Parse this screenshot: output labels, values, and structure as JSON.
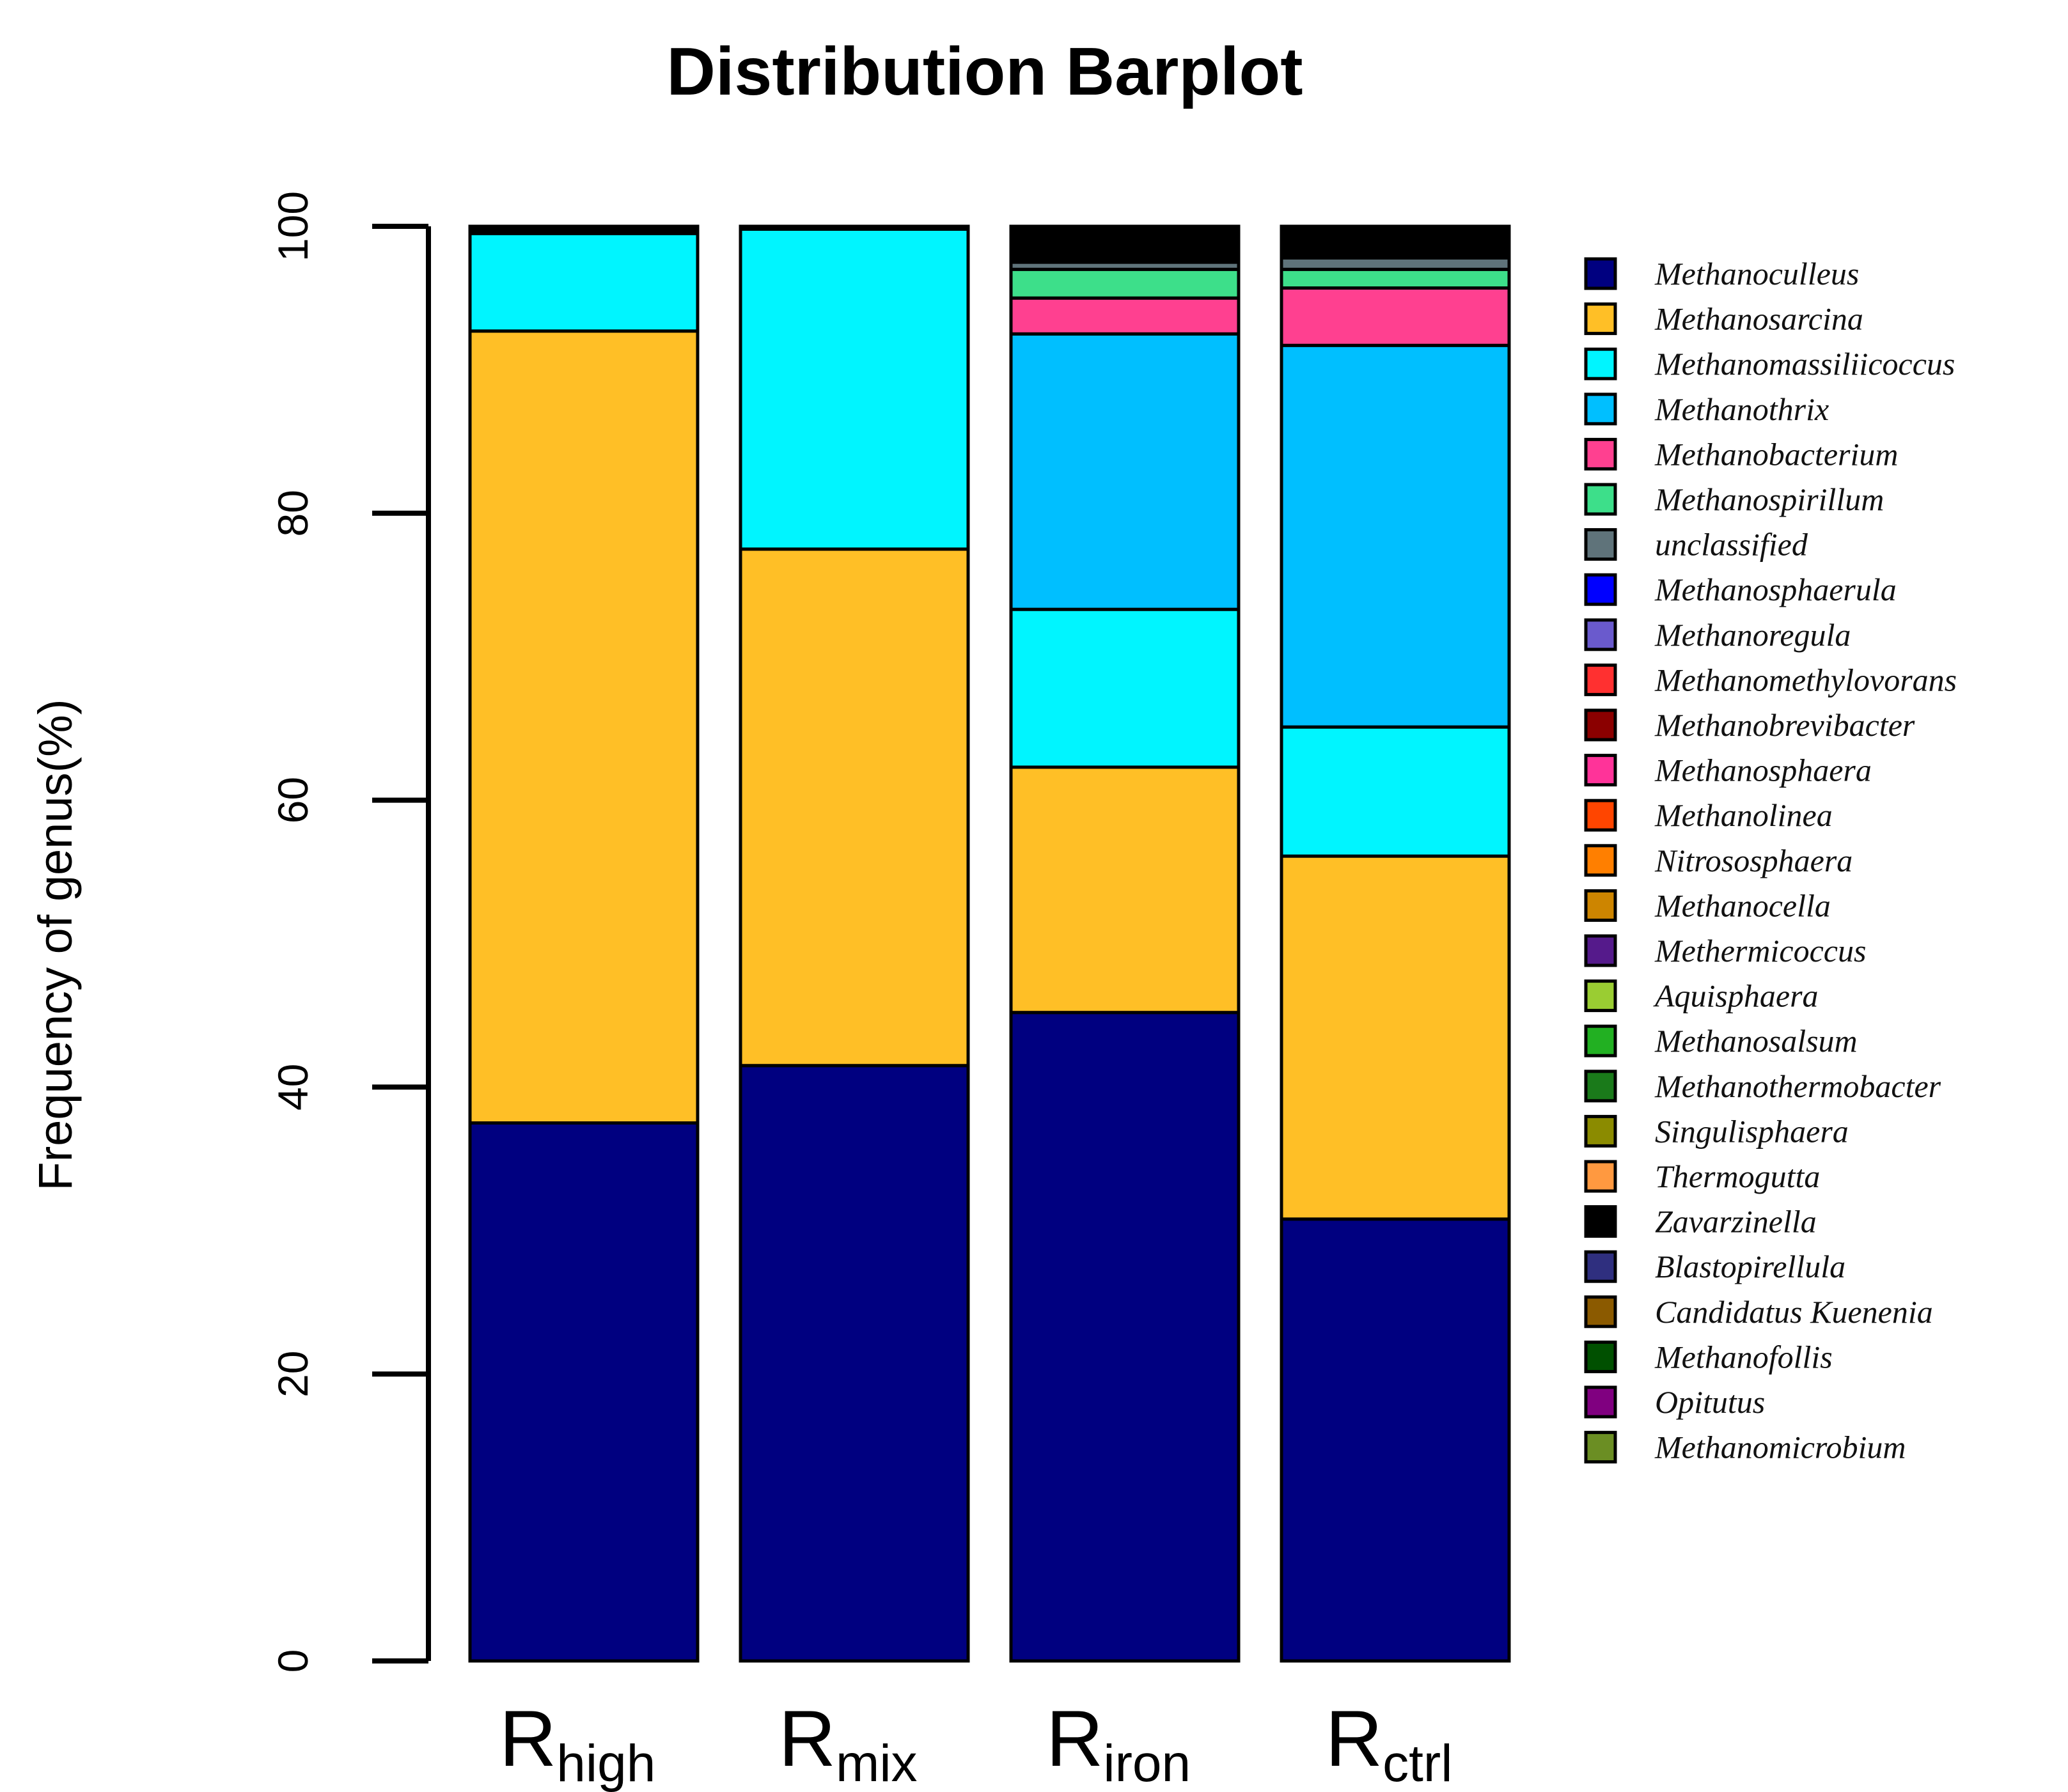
{
  "chart_data": {
    "type": "bar",
    "stacked": true,
    "title": "Distribution Barplot",
    "xlabel": "",
    "ylabel": "Frequency of genus(%)",
    "ylim": [
      0,
      100
    ],
    "yticks": [
      0,
      20,
      40,
      60,
      80,
      100
    ],
    "categories": [
      {
        "main": "R",
        "sub": "high"
      },
      {
        "main": "R",
        "sub": "mix"
      },
      {
        "main": "R",
        "sub": "iron"
      },
      {
        "main": "R",
        "sub": "ctrl"
      }
    ],
    "legend_position": "right",
    "series": [
      {
        "name": "Methanoculleus",
        "color": "#000080",
        "values": [
          37.5,
          41.5,
          45.2,
          30.8
        ]
      },
      {
        "name": "Methanosarcina",
        "color": "#FFBF26",
        "values": [
          55.2,
          36.0,
          17.1,
          25.3
        ]
      },
      {
        "name": "Methanomassiliicoccus",
        "color": "#00F5FF",
        "values": [
          6.8,
          22.3,
          11.0,
          9.0
        ]
      },
      {
        "name": "Methanothrix",
        "color": "#00BFFF",
        "values": [
          0,
          0,
          19.2,
          26.6
        ]
      },
      {
        "name": "Methanobacterium",
        "color": "#FF4090",
        "values": [
          0,
          0,
          2.5,
          4.0
        ]
      },
      {
        "name": "Methanospirillum",
        "color": "#3DDF8A",
        "values": [
          0,
          0,
          2.0,
          1.3
        ]
      },
      {
        "name": "unclassified",
        "color": "#5F737A",
        "values": [
          0,
          0,
          0.5,
          0.8
        ]
      },
      {
        "name": "Methanosphaerula",
        "color": "#0000FF",
        "values": [
          0,
          0,
          0,
          0
        ]
      },
      {
        "name": "Methanoregula",
        "color": "#6A5ACD",
        "values": [
          0,
          0,
          0,
          0
        ]
      },
      {
        "name": "Methanomethylovorans",
        "color": "#FF3030",
        "values": [
          0,
          0,
          0,
          0
        ]
      },
      {
        "name": "Methanobrevibacter",
        "color": "#8B0000",
        "values": [
          0,
          0,
          0,
          0
        ]
      },
      {
        "name": "Methanosphaera",
        "color": "#FF3399",
        "values": [
          0,
          0,
          0,
          0
        ]
      },
      {
        "name": "Methanolinea",
        "color": "#FF4500",
        "values": [
          0,
          0,
          0,
          0
        ]
      },
      {
        "name": "Nitrososphaera",
        "color": "#FF7F00",
        "values": [
          0,
          0,
          0,
          0
        ]
      },
      {
        "name": "Methanocella",
        "color": "#CD8500",
        "values": [
          0,
          0,
          0,
          0
        ]
      },
      {
        "name": "Methermicoccus",
        "color": "#551A8B",
        "values": [
          0,
          0,
          0,
          0
        ]
      },
      {
        "name": "Aquisphaera",
        "color": "#9ACD32",
        "values": [
          0,
          0,
          0,
          0
        ]
      },
      {
        "name": "Methanosalsum",
        "color": "#22B022",
        "values": [
          0,
          0,
          0,
          0
        ]
      },
      {
        "name": "Methanothermobacter",
        "color": "#1A7A1A",
        "values": [
          0,
          0,
          0,
          0
        ]
      },
      {
        "name": "Singulisphaera",
        "color": "#8B8B00",
        "values": [
          0,
          0,
          0,
          0
        ]
      },
      {
        "name": "Thermogutta",
        "color": "#FF9940",
        "values": [
          0,
          0,
          0,
          0
        ]
      },
      {
        "name": "Zavarzinella",
        "color": "#000000",
        "values": [
          0.5,
          0.2,
          2.5,
          2.2
        ]
      },
      {
        "name": "Blastopirellula",
        "color": "#2F2F7F",
        "values": [
          0,
          0,
          0,
          0
        ]
      },
      {
        "name": "Candidatus Kuenenia",
        "color": "#8B5A00",
        "values": [
          0,
          0,
          0,
          0
        ]
      },
      {
        "name": "Methanofollis",
        "color": "#005000",
        "values": [
          0,
          0,
          0,
          0
        ]
      },
      {
        "name": "Opitutus",
        "color": "#800080",
        "values": [
          0,
          0,
          0,
          0
        ]
      },
      {
        "name": "Methanomicrobium",
        "color": "#6B8E23",
        "values": [
          0,
          0,
          0,
          0
        ]
      }
    ]
  }
}
